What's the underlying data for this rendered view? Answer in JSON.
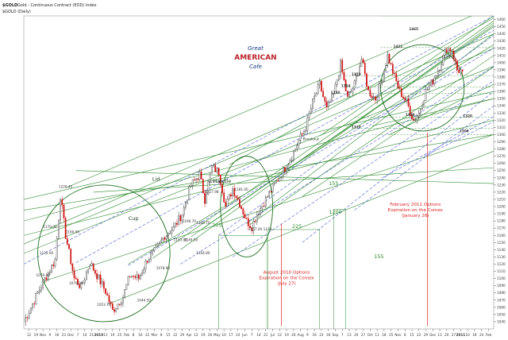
{
  "header": {
    "symbol": "$GOLD",
    "description": "Gold - Continuous Contract (EOD) Index",
    "period": "$GOLD (Daily)"
  },
  "watermark": {
    "line1": "Great",
    "line2": "AMERICAN",
    "line3": "Cafe"
  },
  "colors": {
    "up": "#333333",
    "down": "#cc1111",
    "trend_green": "#2e8b2e",
    "trend_blue": "#4a5fd1",
    "annotation_red": "#dd2222"
  },
  "chart_data": {
    "type": "candlestick",
    "title": "",
    "ylim": [
      1030,
      1465
    ],
    "y_ticks": [
      1040,
      1050,
      1060,
      1070,
      1080,
      1090,
      1100,
      1110,
      1120,
      1130,
      1140,
      1150,
      1160,
      1170,
      1180,
      1190,
      1200,
      1210,
      1220,
      1230,
      1240,
      1250,
      1260,
      1270,
      1280,
      1290,
      1300,
      1310,
      1320,
      1330,
      1340,
      1350,
      1360,
      1370,
      1380,
      1390,
      1400,
      1410,
      1420,
      1430,
      1440,
      1450,
      1460
    ],
    "x_labels": [
      "12",
      "19",
      "Nov",
      "9",
      "16",
      "23",
      "Dec",
      "7",
      "14",
      "21",
      "2010",
      "11",
      "19",
      "25",
      "Feb",
      "8",
      "16",
      "22",
      "Mar",
      "8",
      "15",
      "22",
      "29",
      "Apr",
      "12",
      "19",
      "26",
      "May",
      "10",
      "17",
      "24",
      "Jun",
      "7",
      "14",
      "21",
      "Jul",
      "12",
      "19",
      "26",
      "Aug",
      "9",
      "16",
      "23",
      "30",
      "Sep",
      "7",
      "13",
      "20",
      "27",
      "Oct",
      "11",
      "18",
      "25",
      "Nov",
      "8",
      "15",
      "22",
      "29",
      "Dec",
      "13",
      "20",
      "27",
      "2011",
      "10",
      "18",
      "24",
      "Feb"
    ],
    "anchors": [
      {
        "i": 0,
        "v": 1040
      },
      {
        "i": 10,
        "v": 1090
      },
      {
        "i": 18,
        "v": 1126
      },
      {
        "i": 21,
        "v": 1215
      },
      {
        "i": 24,
        "v": 1160
      },
      {
        "i": 29,
        "v": 1100
      },
      {
        "i": 33,
        "v": 1088
      },
      {
        "i": 38,
        "v": 1122
      },
      {
        "i": 43,
        "v": 1100
      },
      {
        "i": 47,
        "v": 1082
      },
      {
        "i": 51,
        "v": 1055
      },
      {
        "i": 57,
        "v": 1075
      },
      {
        "i": 61,
        "v": 1105
      },
      {
        "i": 66,
        "v": 1100
      },
      {
        "i": 71,
        "v": 1127
      },
      {
        "i": 76,
        "v": 1140
      },
      {
        "i": 81,
        "v": 1160
      },
      {
        "i": 86,
        "v": 1170
      },
      {
        "i": 91,
        "v": 1190
      },
      {
        "i": 96,
        "v": 1230
      },
      {
        "i": 101,
        "v": 1245
      },
      {
        "i": 104,
        "v": 1210
      },
      {
        "i": 108,
        "v": 1255
      },
      {
        "i": 112,
        "v": 1248
      },
      {
        "i": 116,
        "v": 1200
      },
      {
        "i": 120,
        "v": 1225
      },
      {
        "i": 124,
        "v": 1205
      },
      {
        "i": 128,
        "v": 1180
      },
      {
        "i": 131,
        "v": 1172
      },
      {
        "i": 134,
        "v": 1190
      },
      {
        "i": 139,
        "v": 1210
      },
      {
        "i": 144,
        "v": 1230
      },
      {
        "i": 149,
        "v": 1250
      },
      {
        "i": 154,
        "v": 1270
      },
      {
        "i": 158,
        "v": 1292
      },
      {
        "i": 162,
        "v": 1310
      },
      {
        "i": 166,
        "v": 1345
      },
      {
        "i": 170,
        "v": 1370
      },
      {
        "i": 174,
        "v": 1335
      },
      {
        "i": 178,
        "v": 1355
      },
      {
        "i": 182,
        "v": 1398
      },
      {
        "i": 186,
        "v": 1350
      },
      {
        "i": 190,
        "v": 1370
      },
      {
        "i": 194,
        "v": 1405
      },
      {
        "i": 198,
        "v": 1360
      },
      {
        "i": 202,
        "v": 1350
      },
      {
        "i": 206,
        "v": 1380
      },
      {
        "i": 209,
        "v": 1410
      },
      {
        "i": 213,
        "v": 1380
      },
      {
        "i": 216,
        "v": 1360
      },
      {
        "i": 220,
        "v": 1345
      },
      {
        "i": 224,
        "v": 1320
      },
      {
        "i": 227,
        "v": 1330
      },
      {
        "i": 231,
        "v": 1360
      },
      {
        "i": 235,
        "v": 1375
      },
      {
        "i": 239,
        "v": 1395
      },
      {
        "i": 243,
        "v": 1420
      },
      {
        "i": 246,
        "v": 1418
      },
      {
        "i": 249,
        "v": 1390
      },
      {
        "i": 252,
        "v": 1388
      }
    ],
    "price_labels": [
      {
        "x": 24,
        "v": 1226,
        "text": "1226.40"
      },
      {
        "x": 15,
        "v": 1170,
        "text": "1170.30"
      },
      {
        "x": 28,
        "v": 1163,
        "text": "1160.90"
      },
      {
        "x": 13,
        "v": 1134,
        "text": "1122.00"
      },
      {
        "x": 11,
        "v": 1103,
        "text": "1079.30"
      },
      {
        "x": 30,
        "v": 1092,
        "text": "1079.20"
      },
      {
        "x": 46,
        "v": 1062,
        "text": "1053.70"
      },
      {
        "x": 69,
        "v": 1068,
        "text": "1044.50"
      },
      {
        "x": 90,
        "v": 1152,
        "text": "1153.00"
      },
      {
        "x": 96,
        "v": 1152,
        "text": "1149.00"
      },
      {
        "x": 80,
        "v": 1113,
        "text": "1078.90"
      },
      {
        "x": 103,
        "v": 1134,
        "text": "1104.80"
      },
      {
        "x": 103,
        "v": 1176,
        "text": "1168.70"
      },
      {
        "x": 95,
        "v": 1178,
        "text": "1190.70"
      },
      {
        "x": 110,
        "v": 1233,
        "text": "1244.90"
      },
      {
        "x": 108,
        "v": 1219,
        "text": "1227.98"
      },
      {
        "x": 125,
        "v": 1222,
        "text": "1181.00"
      },
      {
        "x": 133,
        "v": 1167,
        "text": "1157.00"
      },
      {
        "x": 140,
        "v": 1167,
        "text": "1173"
      },
      {
        "x": 244,
        "v": 1406,
        "text": "1423.70"
      }
    ],
    "key_levels": [
      {
        "label": "1421",
        "v": 1421,
        "x": 215
      },
      {
        "label": "1370",
        "v": 1382,
        "x": 191
      },
      {
        "label": "1364",
        "v": 1366,
        "x": 185
      },
      {
        "label": "1350",
        "v": 1357,
        "x": 179
      },
      {
        "label": "1329",
        "v": 1326,
        "x": 222
      },
      {
        "label": "1320",
        "v": 1324,
        "x": 255
      },
      {
        "label": "1310",
        "v": 1309,
        "x": 191
      },
      {
        "label": "1300",
        "v": 1303,
        "x": 253
      },
      {
        "label": "1465",
        "v": 1445,
        "x": 224
      }
    ],
    "dimension_labels": [
      {
        "label": "205",
        "v": 1172,
        "x": 111
      },
      {
        "label": "225",
        "v": 1170,
        "x": 157
      },
      {
        "label": "155",
        "v": 1230,
        "x": 178
      },
      {
        "label": "155",
        "v": 1128,
        "x": 204
      },
      {
        "label": "1200",
        "v": 1190,
        "x": 179
      }
    ],
    "pattern_labels": [
      {
        "text": "Lid",
        "v": 1236,
        "x": 76
      },
      {
        "text": "Handle",
        "v": 1233,
        "x": 114
      },
      {
        "text": "Cup",
        "v": 1181,
        "x": 63
      },
      {
        "text": "Breakout",
        "v": 1292,
        "x": 165
      }
    ],
    "annotations": [
      {
        "lines": [
          "August 2010 Options",
          "Expiration on the Comex",
          "(July 27)"
        ],
        "x": 151,
        "v": 1107
      },
      {
        "lines": [
          "February 2011 Options",
          "Expiration on the Comex",
          "(January 26)"
        ],
        "x": 225,
        "v": 1201
      }
    ],
    "trend_lines_green": [
      [
        [
          24,
          1226
        ],
        [
          270,
          1478
        ]
      ],
      [
        [
          15,
          1170
        ],
        [
          270,
          1440
        ]
      ],
      [
        [
          0,
          1148
        ],
        [
          270,
          1420
        ]
      ],
      [
        [
          0,
          1135
        ],
        [
          270,
          1395
        ]
      ],
      [
        [
          0,
          1180
        ],
        [
          270,
          1350
        ]
      ],
      [
        [
          0,
          1210
        ],
        [
          270,
          1360
        ]
      ],
      [
        [
          0,
          1160
        ],
        [
          270,
          1320
        ]
      ],
      [
        [
          0,
          1195
        ],
        [
          270,
          1300
        ]
      ],
      [
        [
          10,
          1095
        ],
        [
          270,
          1300
        ]
      ],
      [
        [
          48,
          1064
        ],
        [
          270,
          1277
        ]
      ],
      [
        [
          40,
          1220
        ],
        [
          270,
          1254
        ]
      ],
      [
        [
          30,
          1250
        ],
        [
          270,
          1232
        ]
      ],
      [
        [
          60,
          1120
        ],
        [
          270,
          1425
        ]
      ],
      [
        [
          74,
          1128
        ],
        [
          270,
          1458
        ]
      ],
      [
        [
          90,
          1140
        ],
        [
          270,
          1455
        ]
      ],
      [
        [
          96,
          1158
        ],
        [
          270,
          1450
        ]
      ],
      [
        [
          103,
          1170
        ],
        [
          270,
          1452
        ]
      ],
      [
        [
          118,
          1258
        ],
        [
          270,
          1462
        ]
      ],
      [
        [
          128,
          1176
        ],
        [
          270,
          1440
        ]
      ],
      [
        [
          130,
          1175
        ],
        [
          270,
          1410
        ]
      ],
      [
        [
          160,
          1214
        ],
        [
          270,
          1394
        ]
      ],
      [
        [
          170,
          1298
        ],
        [
          270,
          1465
        ]
      ],
      [
        [
          210,
          1300
        ],
        [
          270,
          1370
        ]
      ],
      [
        [
          200,
          1312
        ],
        [
          270,
          1350
        ]
      ]
    ],
    "trend_lines_blue": [
      [
        [
          0,
          1120
        ],
        [
          270,
          1465
        ]
      ],
      [
        [
          30,
          1122
        ],
        [
          270,
          1445
        ]
      ],
      [
        [
          60,
          1118
        ],
        [
          270,
          1420
        ]
      ],
      [
        [
          90,
          1120
        ],
        [
          270,
          1395
        ]
      ],
      [
        [
          120,
          1130
        ],
        [
          270,
          1375
        ]
      ],
      [
        [
          160,
          1150
        ],
        [
          270,
          1360
        ]
      ],
      [
        [
          190,
          1195
        ],
        [
          270,
          1340
        ]
      ],
      [
        [
          206,
          1240
        ],
        [
          270,
          1325
        ]
      ],
      [
        [
          230,
          1270
        ],
        [
          270,
          1318
        ]
      ],
      [
        [
          112,
          1160
        ],
        [
          270,
          1438
        ]
      ]
    ],
    "horizontal_lines": [
      {
        "v": 1465,
        "x0": 205,
        "x1": 270
      },
      {
        "v": 1421,
        "x0": 205,
        "x1": 270
      },
      {
        "v": 1382,
        "x0": 185,
        "x1": 270
      },
      {
        "v": 1366,
        "x0": 185,
        "x1": 270
      },
      {
        "v": 1357,
        "x0": 178,
        "x1": 270
      },
      {
        "v": 1324,
        "x0": 190,
        "x1": 270
      },
      {
        "v": 1309,
        "x0": 190,
        "x1": 270
      },
      {
        "v": 1300,
        "x0": 200,
        "x1": 270
      }
    ],
    "ellipses": [
      {
        "cx": 46,
        "cy": 1135,
        "rx": 38,
        "ry": 95
      },
      {
        "cx": 128,
        "cy": 1200,
        "rx": 15,
        "ry": 70
      },
      {
        "cx": 229,
        "cy": 1365,
        "rx": 24,
        "ry": 60
      }
    ],
    "vertical_markers": [
      {
        "x": 148,
        "v0": 1034,
        "v1": 1176,
        "color": "red"
      },
      {
        "x": 232,
        "v0": 1034,
        "v1": 1303,
        "color": "red"
      }
    ],
    "dimension_lines": [
      {
        "x0": 112,
        "x1": 140,
        "v0": 1160,
        "v1": 1030
      },
      {
        "x0": 140,
        "x1": 170,
        "v0": 1168,
        "v1": 1030
      },
      {
        "x0": 178,
        "x1": 185,
        "v0": 1196,
        "v1": 1030
      }
    ]
  }
}
